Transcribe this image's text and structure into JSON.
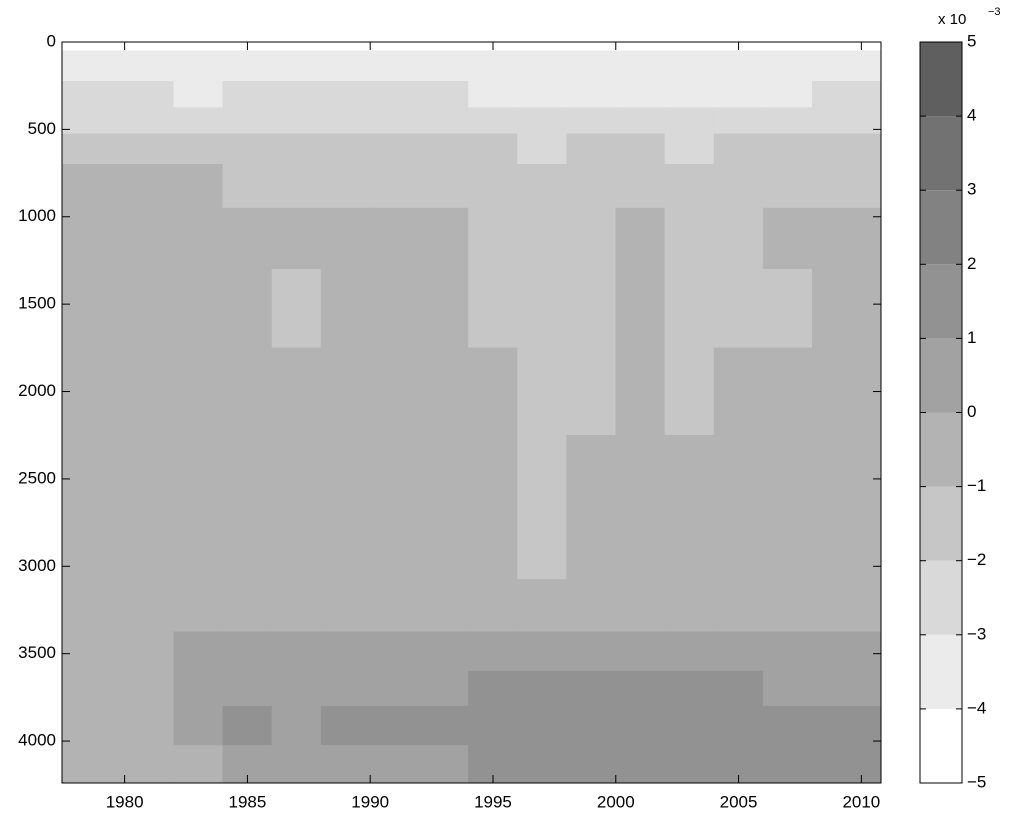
{
  "chart_data": {
    "type": "contour",
    "x": [
      1979,
      1981,
      1983,
      1985,
      1987,
      1989,
      1991,
      1993,
      1995,
      1997,
      1999,
      2001,
      2003,
      2005,
      2007,
      2009
    ],
    "y": [
      150,
      300,
      450,
      600,
      800,
      1100,
      1500,
      2000,
      2500,
      2900,
      3250,
      3500,
      3700,
      3900,
      4150
    ],
    "z": [
      [
        -3.2,
        -3.3,
        -3.4,
        -3.5,
        -3.4,
        -3.3,
        -3.5,
        -3.6,
        -3.8,
        -3.6,
        -3.9,
        -3.7,
        -3.8,
        -3.9,
        -3.6,
        -3.4
      ],
      [
        -2.8,
        -3.0,
        -3.1,
        -2.9,
        -2.8,
        -3.0,
        -2.9,
        -3.0,
        -3.2,
        -3.4,
        -3.5,
        -3.3,
        -3.4,
        -3.3,
        -3.1,
        -3.0
      ],
      [
        -2.3,
        -2.4,
        -2.5,
        -2.3,
        -2.2,
        -2.4,
        -2.4,
        -2.5,
        -2.6,
        -2.8,
        -2.7,
        -2.6,
        -2.8,
        -2.7,
        -2.5,
        -2.4
      ],
      [
        -1.6,
        -1.7,
        -1.8,
        -1.6,
        -1.5,
        -1.7,
        -1.7,
        -1.8,
        -1.9,
        -2.1,
        -2.0,
        -1.9,
        -2.1,
        -2.0,
        -1.8,
        -1.7
      ],
      [
        -0.8,
        -0.9,
        -1.0,
        -1.1,
        -1.1,
        -1.2,
        -1.2,
        -1.3,
        -1.4,
        -1.6,
        -1.5,
        -1.4,
        -1.5,
        -1.4,
        -1.2,
        -1.1
      ],
      [
        -0.6,
        -0.8,
        -0.7,
        -0.9,
        -0.8,
        -0.9,
        -0.8,
        -0.9,
        -1.1,
        -1.4,
        -1.3,
        -0.9,
        -1.1,
        -1.2,
        -0.9,
        -0.7
      ],
      [
        -0.5,
        -0.9,
        -0.7,
        -0.8,
        -1.1,
        -0.8,
        -0.7,
        -0.8,
        -1.1,
        -1.4,
        -1.3,
        -0.8,
        -1.2,
        -1.2,
        -1.1,
        -0.8
      ],
      [
        -0.4,
        -0.7,
        -0.6,
        -0.7,
        -0.8,
        -0.9,
        -0.7,
        -0.8,
        -1.0,
        -1.3,
        -1.2,
        -0.8,
        -1.1,
        -0.9,
        -0.9,
        -0.7
      ],
      [
        -0.3,
        -0.4,
        -0.5,
        -0.6,
        -0.9,
        -0.8,
        -0.5,
        -0.9,
        -1.0,
        -1.3,
        -0.8,
        -0.7,
        -1.0,
        -0.8,
        -0.7,
        -0.5
      ],
      [
        -0.2,
        -0.3,
        -0.4,
        -0.6,
        -0.8,
        -0.5,
        -0.4,
        -0.8,
        -0.6,
        -1.1,
        -0.9,
        -0.6,
        -0.8,
        -0.6,
        -0.5,
        -0.4
      ],
      [
        -0.3,
        -0.2,
        -0.1,
        -0.2,
        -0.1,
        -0.2,
        -0.2,
        -0.1,
        -0.1,
        -0.1,
        -0.1,
        -0.1,
        -0.2,
        -0.1,
        -0.1,
        -0.1
      ],
      [
        -0.4,
        -0.3,
        0.2,
        0.2,
        0.3,
        0.3,
        0.3,
        0.4,
        0.5,
        0.5,
        0.5,
        0.5,
        0.5,
        0.4,
        0.4,
        0.5
      ],
      [
        -0.5,
        -0.4,
        0.3,
        0.5,
        0.4,
        0.6,
        0.7,
        0.9,
        1.1,
        1.3,
        1.3,
        1.2,
        1.1,
        1.0,
        0.9,
        0.8
      ],
      [
        -0.6,
        -0.4,
        0.2,
        1.1,
        0.8,
        1.0,
        1.2,
        1.3,
        1.5,
        1.6,
        1.8,
        1.5,
        1.4,
        1.6,
        1.7,
        1.4
      ],
      [
        -0.6,
        -0.5,
        -0.2,
        0.5,
        0.8,
        0.3,
        0.4,
        0.9,
        1.2,
        1.4,
        1.5,
        1.3,
        1.2,
        1.4,
        1.3,
        1.3
      ]
    ],
    "xlim": [
      1977.45,
      2010.8
    ],
    "xticks": [
      1980,
      1985,
      1990,
      1995,
      2000,
      2005,
      2010
    ],
    "ylim": [
      0,
      4240
    ],
    "y_inverted": true,
    "yticks": [
      0,
      500,
      1000,
      1500,
      2000,
      2500,
      3000,
      3500,
      4000
    ],
    "clim": [
      -5,
      5
    ],
    "cticks": [
      {
        "value": -5,
        "label": "−5"
      },
      {
        "value": -4,
        "label": "−4"
      },
      {
        "value": -3,
        "label": "−3"
      },
      {
        "value": -2,
        "label": "−2"
      },
      {
        "value": -1,
        "label": "−1"
      },
      0,
      1,
      2,
      3,
      4,
      5
    ],
    "level_colors": [
      "#ffffff",
      "#ebebeb",
      "#d9d9d9",
      "#c6c6c6",
      "#b3b3b3",
      "#a2a2a2",
      "#929292",
      "#828282",
      "#727272",
      "#5f5f5f"
    ],
    "colorbar_label": "x 10",
    "colorbar_exponent": "−3"
  }
}
